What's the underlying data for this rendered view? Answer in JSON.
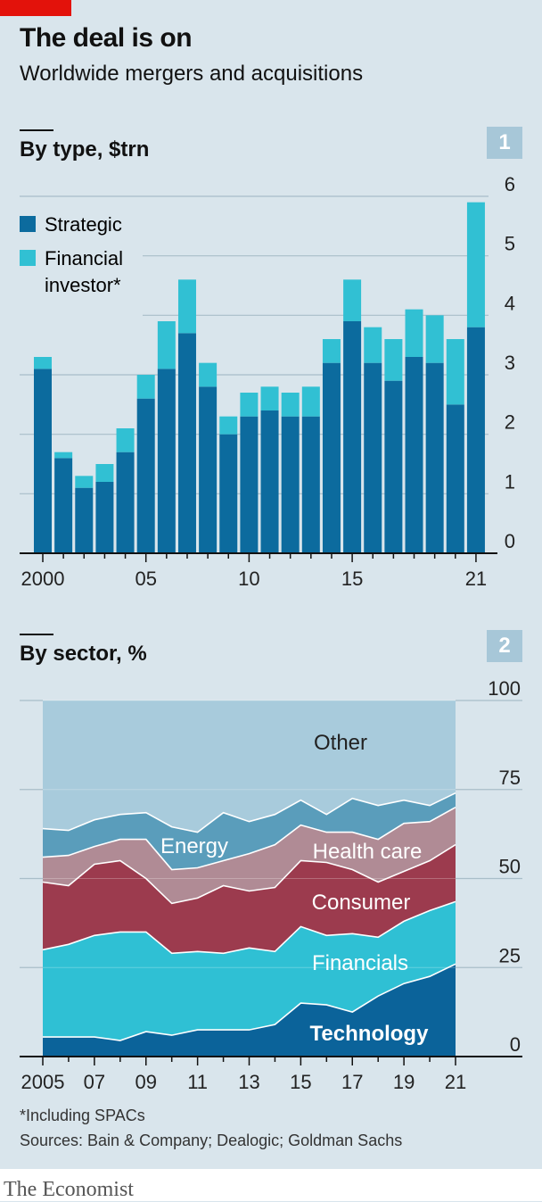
{
  "title": "The deal is on",
  "subtitle": "Worldwide mergers and acquisitions",
  "footnote": "*Including SPACs",
  "sources": "Sources: Bain & Company; Dealogic; Goldman Sachs",
  "brand": "The Economist",
  "colors": {
    "background": "#d9e5ec",
    "strategic": "#0c6b9e",
    "financial": "#31c0d3",
    "technology": "#0b639a",
    "financials": "#2fc0d4",
    "consumer": "#9c3b4e",
    "health_care": "#b08b95",
    "energy": "#5a9dbb",
    "other": "#a8cbdc",
    "red_tag": "#e3120b"
  },
  "chart_data": [
    {
      "type": "bar",
      "badge": "1",
      "title": "By type, $trn",
      "ylim": [
        0,
        6
      ],
      "y_ticks": [
        "0",
        "1",
        "2",
        "3",
        "4",
        "5",
        "6"
      ],
      "x_tick_labels": [
        "2000",
        "05",
        "10",
        "15",
        "21"
      ],
      "x": [
        2000,
        2001,
        2002,
        2003,
        2004,
        2005,
        2006,
        2007,
        2008,
        2009,
        2010,
        2011,
        2012,
        2013,
        2014,
        2015,
        2016,
        2017,
        2018,
        2019,
        2020,
        2021
      ],
      "legend": [
        "Strategic",
        "Financial",
        "investor*"
      ],
      "series": [
        {
          "name": "Strategic",
          "values": [
            3.1,
            1.6,
            1.1,
            1.2,
            1.7,
            2.6,
            3.1,
            3.7,
            2.8,
            2.0,
            2.3,
            2.4,
            2.3,
            2.3,
            3.2,
            3.9,
            3.2,
            2.9,
            3.3,
            3.2,
            2.5,
            3.8
          ]
        },
        {
          "name": "Financial investor*",
          "values": [
            0.2,
            0.1,
            0.2,
            0.3,
            0.4,
            0.4,
            0.8,
            0.9,
            0.4,
            0.3,
            0.4,
            0.4,
            0.4,
            0.5,
            0.4,
            0.7,
            0.6,
            0.7,
            0.8,
            0.8,
            1.1,
            2.1
          ]
        }
      ]
    },
    {
      "type": "area",
      "badge": "2",
      "title": "By sector, %",
      "ylim": [
        0,
        100
      ],
      "y_ticks": [
        "0",
        "25",
        "50",
        "75",
        "100"
      ],
      "x_tick_labels": [
        "2005",
        "07",
        "09",
        "11",
        "13",
        "15",
        "17",
        "19",
        "21"
      ],
      "x": [
        2005,
        2006,
        2007,
        2008,
        2009,
        2010,
        2011,
        2012,
        2013,
        2014,
        2015,
        2016,
        2017,
        2018,
        2019,
        2020,
        2021
      ],
      "series_labels": [
        "Technology",
        "Financials",
        "Consumer",
        "Health care",
        "Energy",
        "Other"
      ],
      "series": [
        {
          "name": "Technology",
          "values": [
            5.5,
            5.5,
            5.5,
            4.5,
            7,
            6,
            7.5,
            7.5,
            7.5,
            9,
            15,
            14.5,
            12.5,
            17,
            20.5,
            22.5,
            26
          ]
        },
        {
          "name": "Financials",
          "values": [
            24.5,
            26,
            28.5,
            30.5,
            28,
            23,
            22,
            21.5,
            23,
            20.5,
            21.5,
            19.5,
            22,
            16.5,
            17.5,
            18.5,
            17.5
          ]
        },
        {
          "name": "Consumer",
          "values": [
            19,
            16.5,
            20,
            20,
            15,
            14,
            15,
            19,
            16,
            18,
            18.5,
            20.5,
            18,
            15.5,
            14,
            14,
            16
          ]
        },
        {
          "name": "Health care",
          "values": [
            7,
            8.5,
            5,
            6,
            11,
            9.5,
            8.5,
            7,
            10.5,
            12,
            10,
            8.5,
            10.5,
            12,
            13.5,
            11,
            10.5
          ]
        },
        {
          "name": "Energy",
          "values": [
            8,
            7,
            7.5,
            7,
            7.5,
            12,
            10,
            13.5,
            9,
            8.5,
            7,
            5,
            9.5,
            9.5,
            6.5,
            4.5,
            4
          ]
        },
        {
          "name": "Other",
          "values": [
            36,
            36.5,
            33.5,
            32,
            31.5,
            35.5,
            37,
            31.5,
            34,
            32,
            28,
            32,
            27.5,
            29.5,
            28,
            29.5,
            26
          ]
        }
      ]
    }
  ]
}
